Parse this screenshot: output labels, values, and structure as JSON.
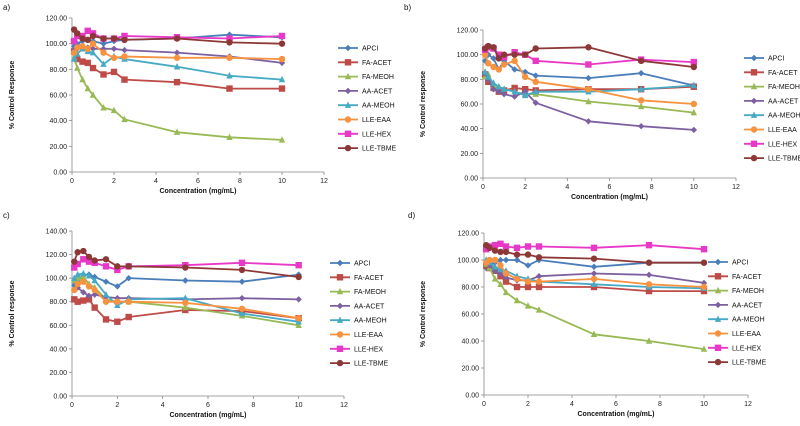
{
  "series_styles": [
    {
      "name": "APCI",
      "color": "#4a7ebb",
      "marker": "diamond"
    },
    {
      "name": "FA-ACET",
      "color": "#be4b48",
      "marker": "square"
    },
    {
      "name": "FA-MEOH",
      "color": "#98b954",
      "marker": "triangle"
    },
    {
      "name": "AA-ACET",
      "color": "#7d60a0",
      "marker": "diamond"
    },
    {
      "name": "AA-MEOH",
      "color": "#46aac5",
      "marker": "triangle"
    },
    {
      "name": "LLE-EAA",
      "color": "#f69240",
      "marker": "circle"
    },
    {
      "name": "LLE-HEX",
      "color": "#e838c8",
      "marker": "square"
    },
    {
      "name": "LLE-TBME",
      "color": "#8c3836",
      "marker": "circle"
    }
  ],
  "chart_data": [
    {
      "panel": "a)",
      "type": "line",
      "xlabel": "Concentration (mg/mL)",
      "ylabel": "% Control Response",
      "xlim": [
        0,
        12
      ],
      "ylim": [
        0,
        120
      ],
      "xticks": [
        "0",
        "2",
        "4",
        "6",
        "8",
        "10",
        "12"
      ],
      "yticks": [
        "0.00",
        "20.00",
        "40.00",
        "60.00",
        "80.00",
        "100.00",
        "120.00"
      ],
      "x": [
        0.1,
        0.25,
        0.5,
        0.75,
        1,
        1.5,
        2,
        2.5,
        5,
        7.5,
        10
      ],
      "series": [
        {
          "name": "APCI",
          "values": [
            98,
            100,
            102,
            103,
            102,
            100,
            102,
            103,
            104,
            107,
            105
          ]
        },
        {
          "name": "FA-ACET",
          "values": [
            94,
            88,
            86,
            85,
            81,
            76,
            78,
            72,
            70,
            65,
            65
          ]
        },
        {
          "name": "FA-MEOH",
          "values": [
            89,
            81,
            72,
            65,
            60,
            50,
            48,
            41,
            31,
            27,
            25
          ]
        },
        {
          "name": "AA-ACET",
          "values": [
            95,
            96,
            97,
            97,
            96,
            96,
            96,
            95,
            93,
            90,
            85
          ]
        },
        {
          "name": "AA-MEOH",
          "values": [
            88,
            92,
            96,
            94,
            93,
            84,
            90,
            88,
            82,
            75,
            72
          ]
        },
        {
          "name": "LLE-EAA",
          "values": [
            93,
            97,
            98,
            96,
            100,
            93,
            89,
            90,
            89,
            89,
            88
          ]
        },
        {
          "name": "LLE-HEX",
          "values": [
            102,
            106,
            106,
            110,
            108,
            104,
            104,
            106,
            105,
            104,
            106
          ]
        },
        {
          "name": "LLE-TBME",
          "values": [
            111,
            108,
            104,
            103,
            106,
            104,
            104,
            103,
            104,
            101,
            100
          ]
        }
      ]
    },
    {
      "panel": "b)",
      "type": "line",
      "xlabel": "Concentration (mg/mL)",
      "ylabel": "% Control response",
      "xlim": [
        0,
        12
      ],
      "ylim": [
        0,
        120
      ],
      "xticks": [
        "0",
        "2",
        "4",
        "6",
        "8",
        "10",
        "12"
      ],
      "yticks": [
        "0.00",
        "20.00",
        "40.00",
        "60.00",
        "80.00",
        "100.00",
        "120.00"
      ],
      "x": [
        0.1,
        0.25,
        0.5,
        0.75,
        1,
        1.5,
        2,
        2.5,
        5,
        7.5,
        10
      ],
      "series": [
        {
          "name": "APCI",
          "values": [
            95,
            100,
            97,
            88,
            95,
            88,
            86,
            83,
            81,
            85,
            75
          ]
        },
        {
          "name": "FA-ACET",
          "values": [
            84,
            78,
            73,
            70,
            71,
            73,
            72,
            71,
            72,
            72,
            74
          ]
        },
        {
          "name": "FA-MEOH",
          "values": [
            82,
            84,
            75,
            74,
            72,
            70,
            68,
            68,
            62,
            58,
            53
          ]
        },
        {
          "name": "AA-ACET",
          "values": [
            85,
            80,
            72,
            70,
            68,
            66,
            70,
            61,
            46,
            42,
            39
          ]
        },
        {
          "name": "AA-MEOH",
          "values": [
            86,
            82,
            77,
            74,
            72,
            70,
            67,
            70,
            70,
            72,
            75
          ]
        },
        {
          "name": "LLE-EAA",
          "values": [
            100,
            93,
            90,
            88,
            92,
            95,
            82,
            78,
            72,
            63,
            60
          ]
        },
        {
          "name": "LLE-HEX",
          "values": [
            104,
            106,
            105,
            100,
            98,
            102,
            100,
            95,
            92,
            96,
            94
          ]
        },
        {
          "name": "LLE-TBME",
          "values": [
            105,
            107,
            106,
            97,
            100,
            100,
            100,
            105,
            106,
            95,
            90
          ]
        }
      ]
    },
    {
      "panel": "c)",
      "type": "line",
      "xlabel": "Concentration (mg/mL)",
      "ylabel": "% Control response",
      "xlim": [
        0,
        12
      ],
      "ylim": [
        0,
        140
      ],
      "xticks": [
        "0",
        "2",
        "4",
        "6",
        "8",
        "10",
        "12"
      ],
      "yticks": [
        "0.00",
        "20.00",
        "40.00",
        "60.00",
        "80.00",
        "100.00",
        "120.00",
        "140.00"
      ],
      "x": [
        0.1,
        0.25,
        0.5,
        0.75,
        1,
        1.5,
        2,
        2.5,
        5,
        7.5,
        10
      ],
      "series": [
        {
          "name": "APCI",
          "values": [
            94,
            98,
            102,
            103,
            101,
            97,
            93,
            100,
            98,
            97,
            103
          ]
        },
        {
          "name": "FA-ACET",
          "values": [
            82,
            80,
            81,
            82,
            75,
            65,
            63,
            67,
            73,
            72,
            66
          ]
        },
        {
          "name": "FA-MEOH",
          "values": [
            98,
            100,
            101,
            95,
            92,
            82,
            80,
            80,
            75,
            68,
            60
          ]
        },
        {
          "name": "AA-ACET",
          "values": [
            90,
            92,
            88,
            85,
            86,
            84,
            83,
            83,
            82,
            83,
            82
          ]
        },
        {
          "name": "AA-MEOH",
          "values": [
            100,
            103,
            104,
            102,
            98,
            86,
            77,
            82,
            83,
            70,
            63
          ]
        },
        {
          "name": "LLE-EAA",
          "values": [
            90,
            95,
            97,
            93,
            90,
            80,
            80,
            80,
            79,
            74,
            66
          ]
        },
        {
          "name": "LLE-HEX",
          "values": [
            109,
            112,
            116,
            114,
            113,
            110,
            107,
            110,
            111,
            113,
            111
          ]
        },
        {
          "name": "LLE-TBME",
          "values": [
            114,
            122,
            123,
            118,
            115,
            116,
            110,
            110,
            109,
            107,
            101
          ]
        }
      ]
    },
    {
      "panel": "d)",
      "type": "line",
      "xlabel": "Concentration (mg/mL)",
      "ylabel": "% Control response",
      "xlim": [
        0,
        12
      ],
      "ylim": [
        0,
        120
      ],
      "xticks": [
        "0",
        "2",
        "4",
        "6",
        "8",
        "10",
        "12"
      ],
      "yticks": [
        "0.00",
        "20.00",
        "40.00",
        "60.00",
        "80.00",
        "100.00",
        "120.00"
      ],
      "x": [
        0.1,
        0.25,
        0.5,
        0.75,
        1,
        1.5,
        2,
        2.5,
        5,
        7.5,
        10
      ],
      "series": [
        {
          "name": "APCI",
          "values": [
            94,
            97,
            98,
            100,
            100,
            100,
            96,
            100,
            95,
            98,
            98
          ]
        },
        {
          "name": "FA-ACET",
          "values": [
            96,
            94,
            92,
            88,
            84,
            80,
            80,
            80,
            80,
            77,
            77
          ]
        },
        {
          "name": "FA-MEOH",
          "values": [
            97,
            94,
            86,
            82,
            76,
            70,
            66,
            63,
            45,
            40,
            34
          ]
        },
        {
          "name": "AA-ACET",
          "values": [
            98,
            96,
            92,
            90,
            87,
            85,
            85,
            88,
            90,
            89,
            83
          ]
        },
        {
          "name": "AA-MEOH",
          "values": [
            100,
            98,
            95,
            93,
            92,
            88,
            86,
            84,
            82,
            80,
            79
          ]
        },
        {
          "name": "LLE-EAA",
          "values": [
            98,
            100,
            100,
            96,
            90,
            86,
            84,
            84,
            86,
            82,
            80
          ]
        },
        {
          "name": "LLE-HEX",
          "values": [
            108,
            110,
            111,
            112,
            110,
            109,
            110,
            110,
            109,
            111,
            108
          ]
        },
        {
          "name": "LLE-TBME",
          "values": [
            111,
            109,
            107,
            106,
            106,
            104,
            104,
            102,
            101,
            98,
            98
          ]
        }
      ]
    }
  ]
}
